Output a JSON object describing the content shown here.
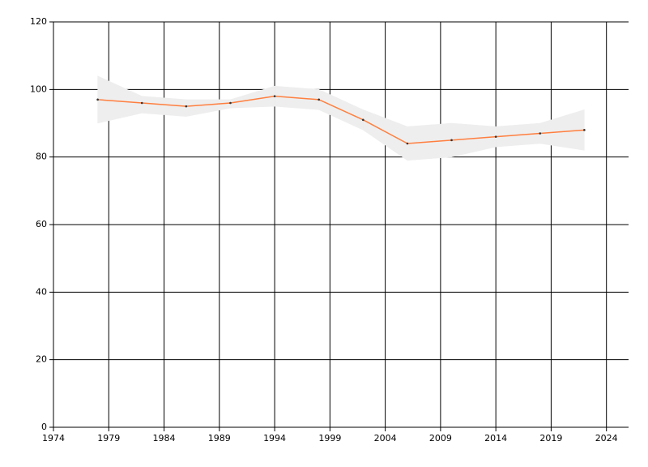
{
  "chart_data": {
    "type": "line",
    "x": [
      1978,
      1982,
      1986,
      1990,
      1994,
      1998,
      2002,
      2006,
      2010,
      2014,
      2018,
      2022
    ],
    "values": [
      97,
      96,
      95,
      96,
      98,
      97,
      91,
      84,
      85,
      86,
      87,
      88
    ],
    "upper": [
      104,
      98,
      97,
      97,
      101,
      100,
      94,
      89,
      90,
      89,
      90,
      94
    ],
    "lower": [
      90,
      93,
      92,
      94.5,
      95,
      94,
      88,
      79,
      80,
      83,
      84,
      82
    ],
    "color": "#ff7f3f",
    "band_color": "#eeeeee",
    "marker_color": "#333333",
    "xlim": [
      1974,
      2026
    ],
    "xticks": [
      1974,
      1979,
      1984,
      1989,
      1994,
      1999,
      2004,
      2009,
      2014,
      2019,
      2024
    ],
    "ylim": [
      0,
      120
    ],
    "yticks": [
      0,
      20,
      40,
      60,
      80,
      100,
      120
    ],
    "grid": true
  }
}
